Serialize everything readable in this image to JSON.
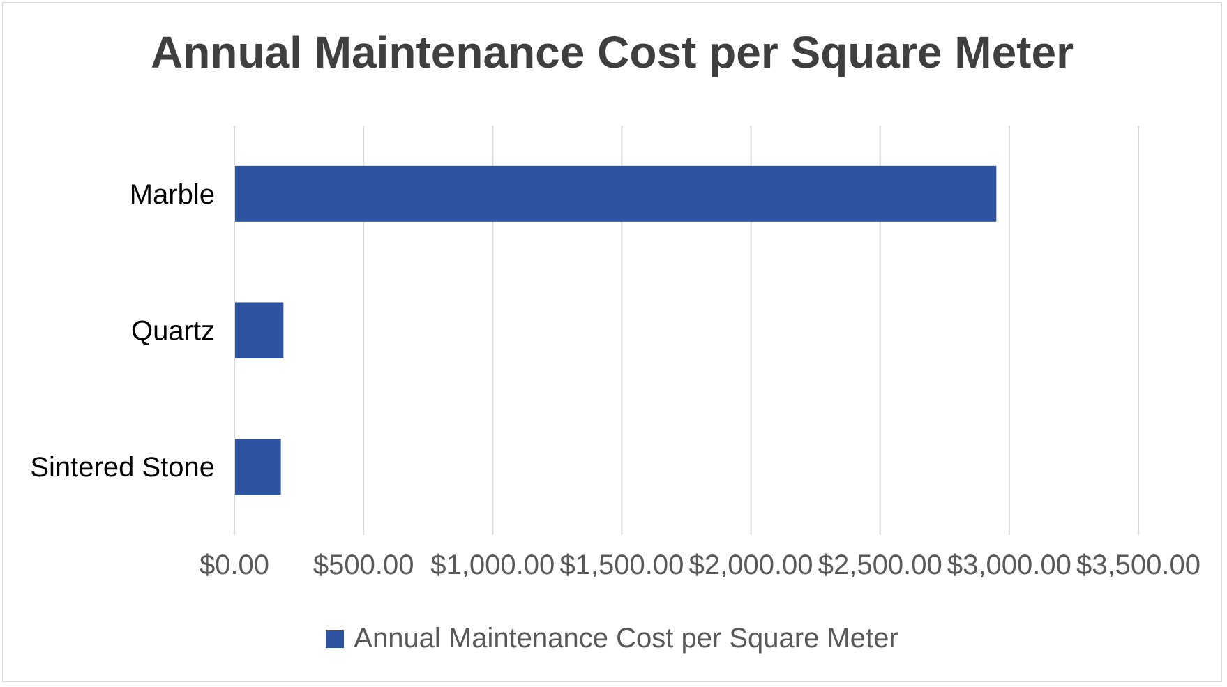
{
  "chart_data": {
    "type": "bar",
    "orientation": "horizontal",
    "title": "Annual Maintenance Cost per Square Meter",
    "xlabel": "",
    "ylabel": "",
    "categories": [
      "Marble",
      "Quartz",
      "Sintered Stone"
    ],
    "series": [
      {
        "name": "Annual Maintenance Cost per Square Meter",
        "values": [
          2950,
          190,
          180
        ],
        "color": "#2e54a1"
      }
    ],
    "xlim": [
      0,
      3500
    ],
    "x_ticks": [
      0,
      500,
      1000,
      1500,
      2000,
      2500,
      3000,
      3500
    ],
    "x_tick_labels": [
      "$0.00",
      "$500.00",
      "$1,000.00",
      "$1,500.00",
      "$2,000.00",
      "$2,500.00",
      "$3,000.00",
      "$3,500.00"
    ],
    "grid": true,
    "legend_position": "bottom",
    "colors": {
      "gridline": "#d9d9d9",
      "title": "#3f3f3f",
      "tick_label": "#595959",
      "category_label": "#000000"
    }
  }
}
